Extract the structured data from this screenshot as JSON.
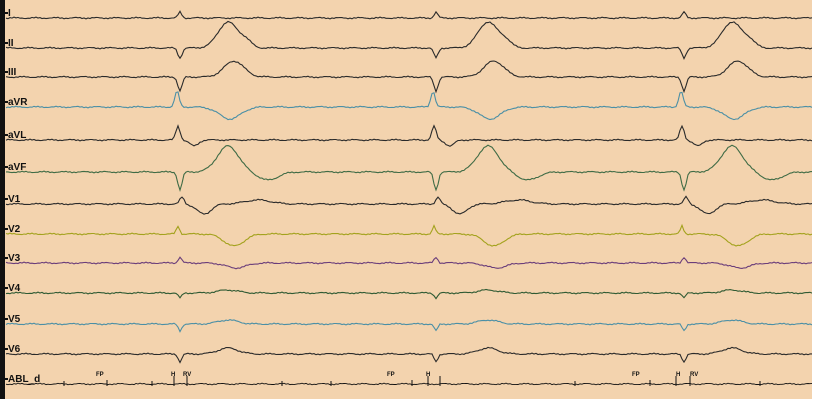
{
  "window": {
    "background": "#f3d3ae",
    "trace_ink": "#111111"
  },
  "leads": [
    {
      "label": "I",
      "color": "#2a2a2a"
    },
    {
      "label": "II",
      "color": "#2a2a2a"
    },
    {
      "label": "III",
      "color": "#2a2a2a"
    },
    {
      "label": "aVR",
      "color": "#4a8fa6"
    },
    {
      "label": "aVL",
      "color": "#2a2a2a"
    },
    {
      "label": "aVF",
      "color": "#3f6b45"
    },
    {
      "label": "V1",
      "color": "#2a2a2a"
    },
    {
      "label": "V2",
      "color": "#a3a21d"
    },
    {
      "label": "V3",
      "color": "#6a3d7a"
    },
    {
      "label": "V4",
      "color": "#2f5a33"
    },
    {
      "label": "V5",
      "color": "#4a8fa6"
    },
    {
      "label": "V6",
      "color": "#2a2a2a"
    },
    {
      "label": "ABL_d",
      "color": "#111111"
    }
  ],
  "markers": {
    "fp": "FP",
    "h": "H",
    "rv": "RV"
  }
}
